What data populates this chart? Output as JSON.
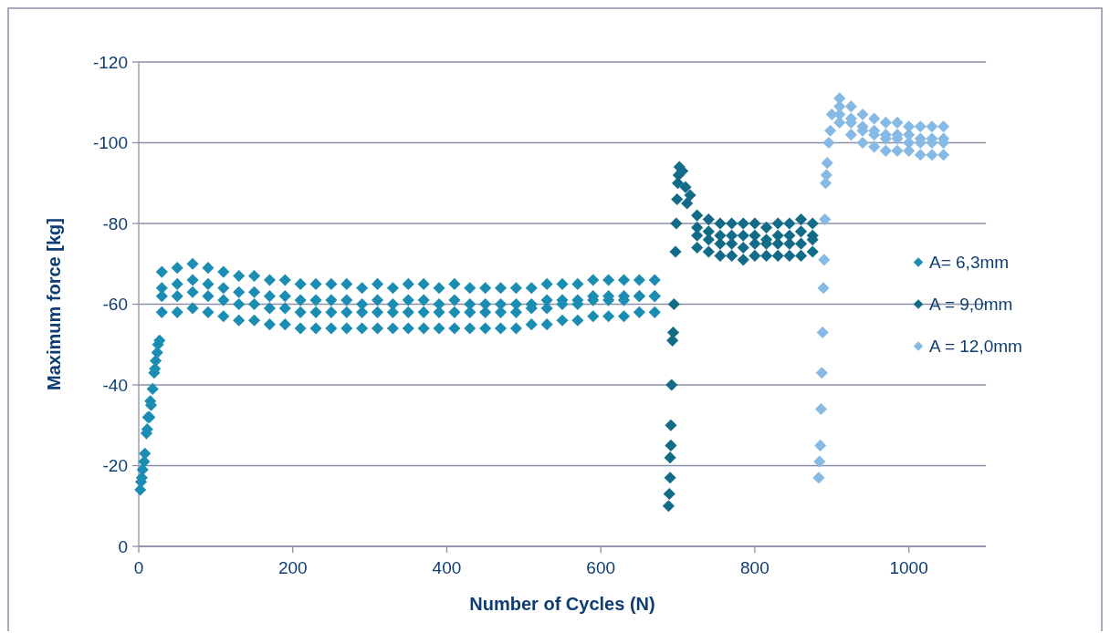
{
  "chart_data": {
    "type": "scatter",
    "xlabel": "Number of Cycles (N)",
    "ylabel": "Maximum force [kg]",
    "xlim": [
      0,
      1100
    ],
    "xticks": [
      0,
      200,
      400,
      600,
      800,
      1000
    ],
    "ylim": [
      0,
      -120
    ],
    "yticks": [
      0,
      -20,
      -40,
      -60,
      -80,
      -100,
      -120
    ],
    "grid": "y",
    "legend": "right",
    "marker": "diamond",
    "series": [
      {
        "name": "A= 6,3mm",
        "color": "#1b8db2",
        "x": [
          2,
          3,
          4,
          5,
          7,
          8,
          10,
          11,
          12,
          14,
          15,
          16,
          18,
          20,
          21,
          22,
          24,
          25,
          27,
          30,
          30,
          30,
          30,
          50,
          50,
          50,
          50,
          70,
          70,
          70,
          70,
          90,
          90,
          90,
          90,
          110,
          110,
          110,
          110,
          130,
          130,
          130,
          130,
          150,
          150,
          150,
          150,
          170,
          170,
          170,
          170,
          190,
          190,
          190,
          190,
          210,
          210,
          210,
          210,
          230,
          230,
          230,
          230,
          250,
          250,
          250,
          250,
          270,
          270,
          270,
          270,
          290,
          290,
          290,
          290,
          310,
          310,
          310,
          310,
          330,
          330,
          330,
          330,
          350,
          350,
          350,
          350,
          370,
          370,
          370,
          370,
          390,
          390,
          390,
          390,
          410,
          410,
          410,
          410,
          430,
          430,
          430,
          430,
          450,
          450,
          450,
          450,
          470,
          470,
          470,
          470,
          490,
          490,
          490,
          490,
          510,
          510,
          510,
          510,
          530,
          530,
          530,
          530,
          550,
          550,
          550,
          550,
          570,
          570,
          570,
          570,
          590,
          590,
          590,
          590,
          610,
          610,
          610,
          610,
          630,
          630,
          630,
          630,
          650,
          650,
          650,
          650,
          670,
          670,
          670,
          670
        ],
        "values": [
          -14,
          -16,
          -17,
          -19,
          -21,
          -23,
          -28,
          -29,
          -32,
          -32,
          -36,
          -35,
          -39,
          -43,
          -44,
          -46,
          -48,
          -50,
          -51,
          -68,
          -64,
          -62,
          -58,
          -69,
          -65,
          -62,
          -58,
          -70,
          -66,
          -63,
          -59,
          -69,
          -65,
          -62,
          -58,
          -68,
          -64,
          -61,
          -57,
          -67,
          -63,
          -60,
          -56,
          -67,
          -63,
          -60,
          -56,
          -66,
          -62,
          -59,
          -55,
          -66,
          -62,
          -59,
          -55,
          -65,
          -61,
          -58,
          -54,
          -65,
          -61,
          -58,
          -54,
          -65,
          -61,
          -58,
          -54,
          -65,
          -61,
          -58,
          -54,
          -64,
          -60,
          -58,
          -54,
          -65,
          -61,
          -58,
          -54,
          -64,
          -60,
          -58,
          -54,
          -65,
          -61,
          -58,
          -54,
          -65,
          -61,
          -58,
          -54,
          -64,
          -60,
          -58,
          -54,
          -65,
          -61,
          -58,
          -54,
          -64,
          -60,
          -58,
          -54,
          -64,
          -60,
          -58,
          -54,
          -64,
          -60,
          -58,
          -54,
          -64,
          -60,
          -58,
          -54,
          -64,
          -60,
          -59,
          -55,
          -65,
          -61,
          -59,
          -55,
          -65,
          -61,
          -60,
          -56,
          -65,
          -61,
          -60,
          -56,
          -66,
          -62,
          -61,
          -57,
          -66,
          -62,
          -61,
          -57,
          -66,
          -62,
          -61,
          -57,
          -66,
          -62,
          -62,
          -58,
          -66,
          -62,
          -62,
          -58
        ]
      },
      {
        "name": "A = 9,0mm",
        "color": "#126b87",
        "x": [
          688,
          689,
          690,
          690,
          691,
          691,
          692,
          693,
          694,
          695,
          697,
          698,
          699,
          700,
          701,
          702,
          706,
          710,
          712,
          716,
          725,
          725,
          725,
          725,
          740,
          740,
          740,
          740,
          755,
          755,
          755,
          755,
          770,
          770,
          770,
          770,
          785,
          785,
          785,
          785,
          800,
          800,
          800,
          800,
          815,
          815,
          815,
          815,
          830,
          830,
          830,
          830,
          845,
          845,
          845,
          845,
          860,
          860,
          860,
          860,
          875,
          875,
          875,
          875
        ],
        "values": [
          -10,
          -13,
          -17,
          -22,
          -25,
          -30,
          -40,
          -51,
          -53,
          -60,
          -73,
          -80,
          -86,
          -90,
          -92,
          -94,
          -93,
          -89,
          -85,
          -87,
          -82,
          -79,
          -77,
          -74,
          -81,
          -78,
          -76,
          -73,
          -80,
          -77,
          -75,
          -72,
          -80,
          -77,
          -75,
          -72,
          -80,
          -77,
          -74,
          -71,
          -80,
          -77,
          -75,
          -72,
          -79,
          -76,
          -75,
          -72,
          -80,
          -77,
          -75,
          -72,
          -80,
          -77,
          -75,
          -72,
          -81,
          -78,
          -75,
          -72,
          -80,
          -77,
          -76,
          -73
        ]
      },
      {
        "name": "A = 12,0mm",
        "color": "#86bae4",
        "x": [
          883,
          884,
          885,
          886,
          887,
          888,
          889,
          890,
          891,
          892,
          893,
          894,
          896,
          898,
          900,
          910,
          910,
          910,
          910,
          925,
          925,
          925,
          925,
          940,
          940,
          940,
          940,
          955,
          955,
          955,
          955,
          970,
          970,
          970,
          970,
          985,
          985,
          985,
          985,
          1000,
          1000,
          1000,
          1000,
          1015,
          1015,
          1015,
          1015,
          1030,
          1030,
          1030,
          1030,
          1045,
          1045,
          1045,
          1045
        ],
        "values": [
          -17,
          -21,
          -25,
          -34,
          -43,
          -53,
          -64,
          -71,
          -81,
          -90,
          -92,
          -95,
          -100,
          -103,
          -107,
          -111,
          -109,
          -107,
          -105,
          -109,
          -106,
          -105,
          -102,
          -107,
          -104,
          -103,
          -100,
          -106,
          -103,
          -102,
          -99,
          -105,
          -102,
          -101,
          -98,
          -105,
          -102,
          -101,
          -98,
          -104,
          -102,
          -100,
          -98,
          -104,
          -101,
          -100,
          -97,
          -104,
          -101,
          -100,
          -97,
          -104,
          -101,
          -100,
          -97
        ]
      }
    ]
  }
}
